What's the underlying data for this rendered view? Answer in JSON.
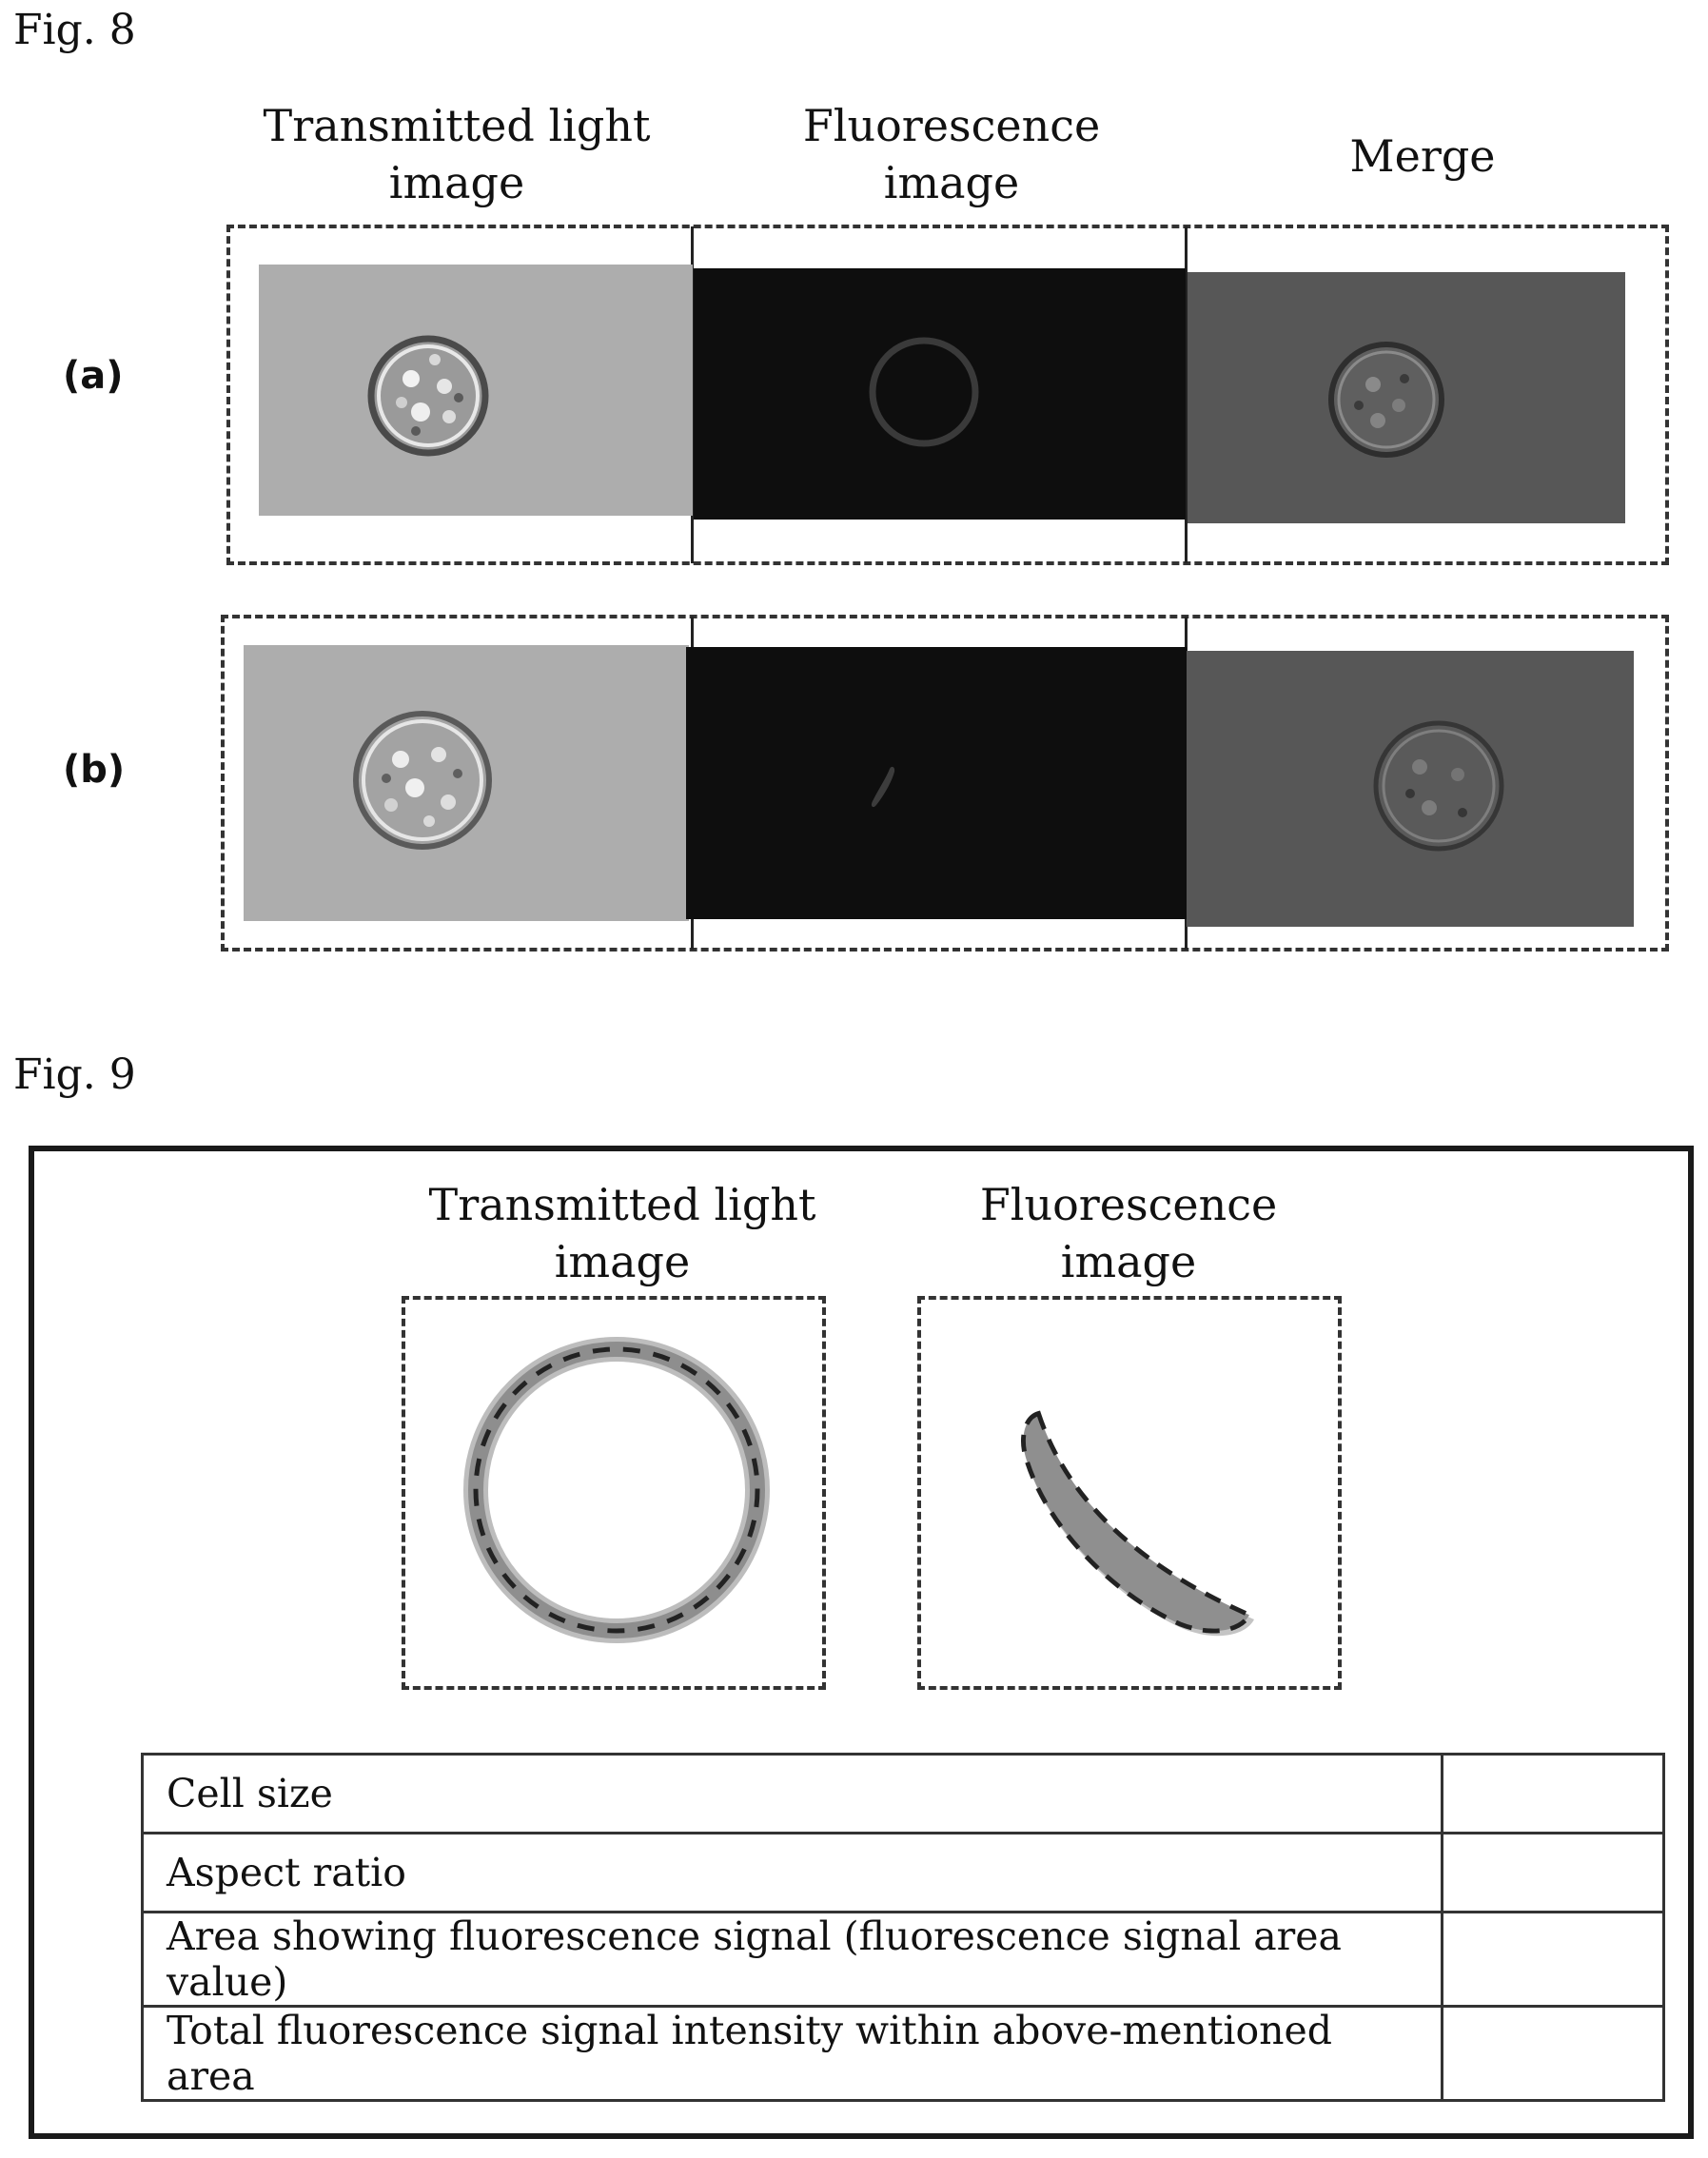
{
  "fig8": {
    "label": "Fig. 8",
    "columns": [
      {
        "line1": "Transmitted light",
        "line2": "image"
      },
      {
        "line1": "Fluorescence",
        "line2": "image"
      },
      {
        "line1": "Merge",
        "line2": ""
      }
    ],
    "rows": [
      {
        "label": "(a)"
      },
      {
        "label": "(b)"
      }
    ]
  },
  "fig9": {
    "label": "Fig. 9",
    "panels": [
      {
        "line1": "Transmitted light",
        "line2": "image"
      },
      {
        "line1": "Fluorescence",
        "line2": "image"
      }
    ],
    "table": [
      {
        "label": "Cell size",
        "value": ""
      },
      {
        "label": "Aspect ratio",
        "value": ""
      },
      {
        "label": "Area showing fluorescence signal (fluorescence signal area value)",
        "value": ""
      },
      {
        "label": "Total fluorescence signal intensity within above-mentioned area",
        "value": ""
      }
    ]
  }
}
